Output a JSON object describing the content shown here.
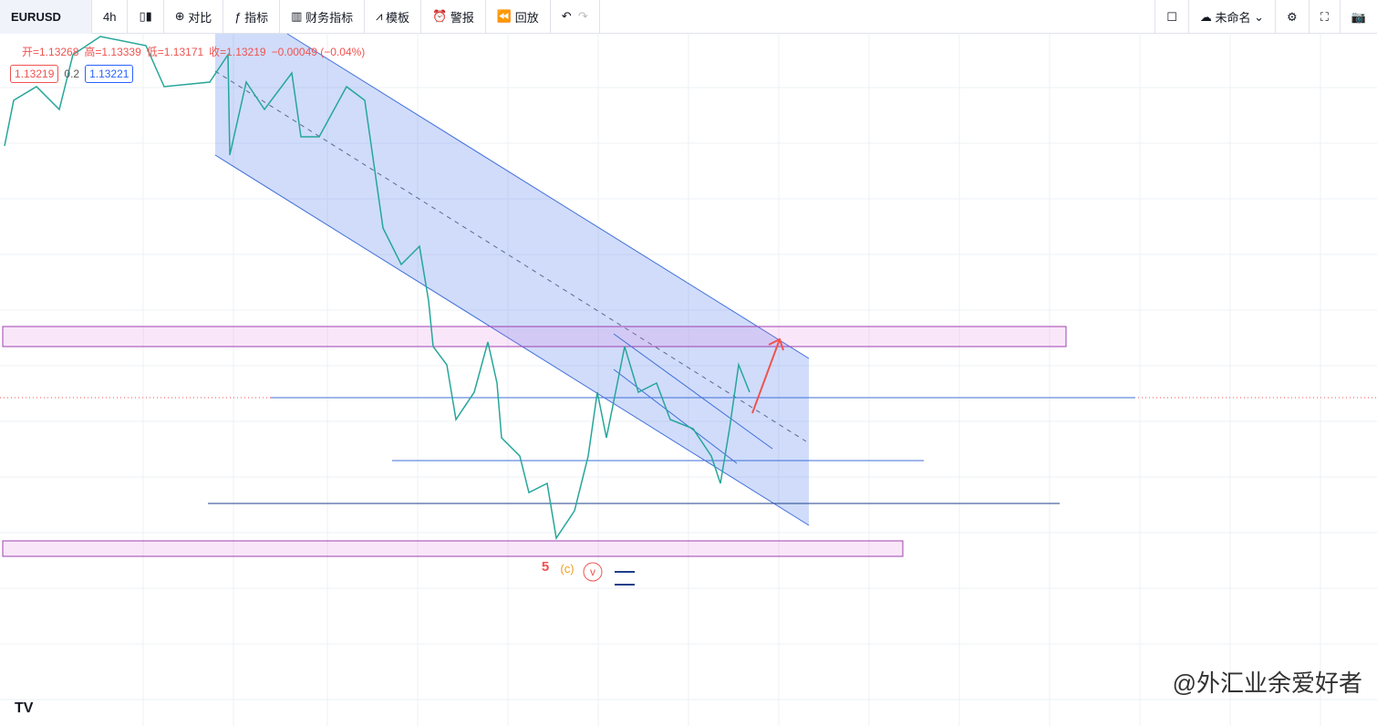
{
  "toolbar": {
    "symbol": "EURUSD",
    "interval": "4h",
    "buttons": [
      "对比",
      "指标",
      "财务指标",
      "模板",
      "警报",
      "回放"
    ],
    "layout_name": "未命名"
  },
  "legend": {
    "ohlc": [
      "开=1.13268",
      "高=1.13339",
      "低=1.13171",
      "收=1.13219"
    ],
    "change": "−0.00049 (−0.04%)"
  },
  "price_boxes": {
    "sell": "1.13219",
    "spread": "0.2",
    "buy": "1.13221"
  },
  "annotations": [
    "5",
    "(c)",
    "v"
  ],
  "watermark": "@外汇业余爱好者"
}
